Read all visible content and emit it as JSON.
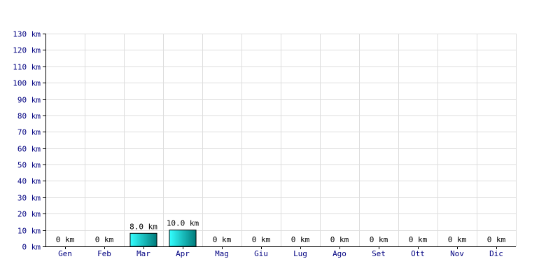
{
  "chart_data": {
    "type": "bar",
    "categories": [
      "Gen",
      "Feb",
      "Mar",
      "Apr",
      "Mag",
      "Giu",
      "Lug",
      "Ago",
      "Set",
      "Ott",
      "Nov",
      "Dic"
    ],
    "values": [
      0,
      0,
      8.0,
      10.0,
      0,
      0,
      0,
      0,
      0,
      0,
      0,
      0
    ],
    "data_labels": [
      "0 km",
      "0 km",
      "8.0 km",
      "10.0 km",
      "0 km",
      "0 km",
      "0 km",
      "0 km",
      "0 km",
      "0 km",
      "0 km",
      "0 km"
    ],
    "y_ticks": [
      0,
      10,
      20,
      30,
      40,
      50,
      60,
      70,
      80,
      90,
      100,
      110,
      120,
      130
    ],
    "y_tick_labels": [
      "0 km",
      "10 km",
      "20 km",
      "30 km",
      "40 km",
      "50 km",
      "60 km",
      "70 km",
      "80 km",
      "90 km",
      "100 km",
      "110 km",
      "120 km",
      "130 km"
    ],
    "ylim": [
      0,
      130
    ],
    "grid": true,
    "title": "",
    "xlabel": "",
    "ylabel": "",
    "colors": {
      "bar_light": "#33ffff",
      "bar_dark": "#007a7a",
      "bar_border": "#000000",
      "grid": "#dddddd",
      "axis": "#000000",
      "tick_text": "#000080"
    }
  }
}
